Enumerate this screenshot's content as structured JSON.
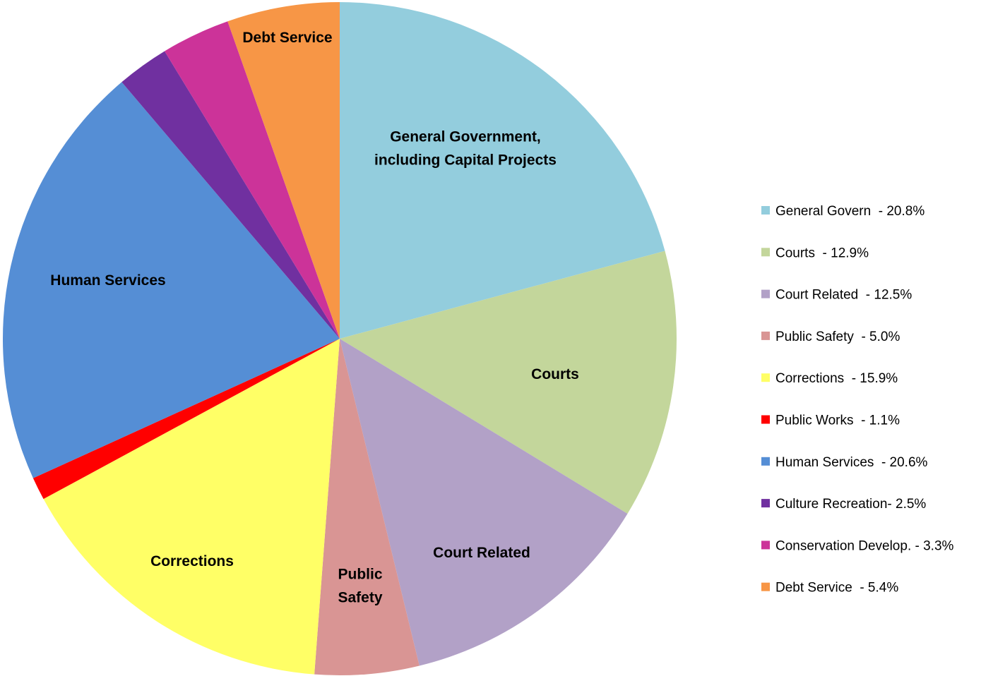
{
  "chart_data": {
    "type": "pie",
    "start_angle_deg": 0,
    "direction": "clockwise",
    "legend_position": "right",
    "slices": [
      {
        "name": "General Government",
        "value": 20.8,
        "color": "#93CDDD",
        "label_lines": [
          "General Government,",
          "including Capital Projects"
        ],
        "legend": "General Govern  - 20.8%"
      },
      {
        "name": "Courts",
        "value": 12.9,
        "color": "#C3D69B",
        "label_lines": [
          "Courts"
        ],
        "legend": "Courts  - 12.9%"
      },
      {
        "name": "Court Related",
        "value": 12.5,
        "color": "#B2A1C7",
        "label_lines": [
          "Court Related"
        ],
        "legend": "Court Related  - 12.5%"
      },
      {
        "name": "Public Safety",
        "value": 5.0,
        "color": "#D99594",
        "label_lines": [
          "Public",
          "Safety"
        ],
        "legend": "Public Safety  - 5.0%"
      },
      {
        "name": "Corrections",
        "value": 15.9,
        "color": "#FFFF66",
        "label_lines": [
          "Corrections"
        ],
        "legend": "Corrections  - 15.9%"
      },
      {
        "name": "Public Works",
        "value": 1.1,
        "color": "#FF0000",
        "label_lines": [],
        "legend": "Public Works  - 1.1%"
      },
      {
        "name": "Human Services",
        "value": 20.6,
        "color": "#558ED5",
        "label_lines": [
          "Human Services"
        ],
        "legend": "Human Services  - 20.6%"
      },
      {
        "name": "Culture Recreation",
        "value": 2.5,
        "color": "#7030A0",
        "label_lines": [],
        "legend": "Culture Recreation- 2.5%"
      },
      {
        "name": "Conservation Develop.",
        "value": 3.3,
        "color": "#CC3399",
        "label_lines": [],
        "legend": "Conservation Develop. - 3.3%"
      },
      {
        "name": "Debt Service",
        "value": 5.4,
        "color": "#F79646",
        "label_lines": [
          "Debt Service"
        ],
        "legend": "Debt Service  - 5.4%"
      }
    ]
  }
}
